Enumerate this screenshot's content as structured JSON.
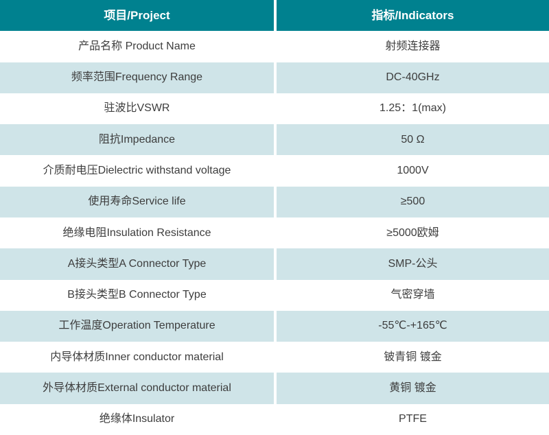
{
  "chart_data": {
    "type": "table",
    "columns": [
      "项目/Project",
      "指标/Indicators"
    ],
    "rows": [
      [
        "产品名称 Product Name",
        "射频连接器"
      ],
      [
        "频率范围Frequency Range",
        "DC-40GHz"
      ],
      [
        "驻波比VSWR",
        "1.25：1(max)"
      ],
      [
        "阻抗Impedance",
        "50 Ω"
      ],
      [
        "介质耐电压Dielectric withstand voltage",
        "1000V"
      ],
      [
        "使用寿命Service life",
        "≥500"
      ],
      [
        "绝缘电阻Insulation Resistance",
        "≥5000欧姆"
      ],
      [
        "A接头类型A Connector Type",
        "SMP-公头"
      ],
      [
        "B接头类型B Connector Type",
        "气密穿墙"
      ],
      [
        "工作温度Operation Temperature",
        "-55℃-+165℃"
      ],
      [
        "内导体材质Inner conductor material",
        "铍青铜 镀金"
      ],
      [
        "外导体材质External conductor material",
        "黄铜 镀金"
      ],
      [
        "绝缘体Insulator",
        "PTFE"
      ]
    ],
    "title": "",
    "layout_hints": {
      "alternating_rows": true,
      "first_data_row_background": "white",
      "column_divider": "white 4px vertical gap"
    }
  },
  "colors": {
    "header_bg": "#00818f",
    "header_text": "#ffffff",
    "row_alt_bg": "#cfe4e8",
    "body_text": "#3d3d3d"
  }
}
